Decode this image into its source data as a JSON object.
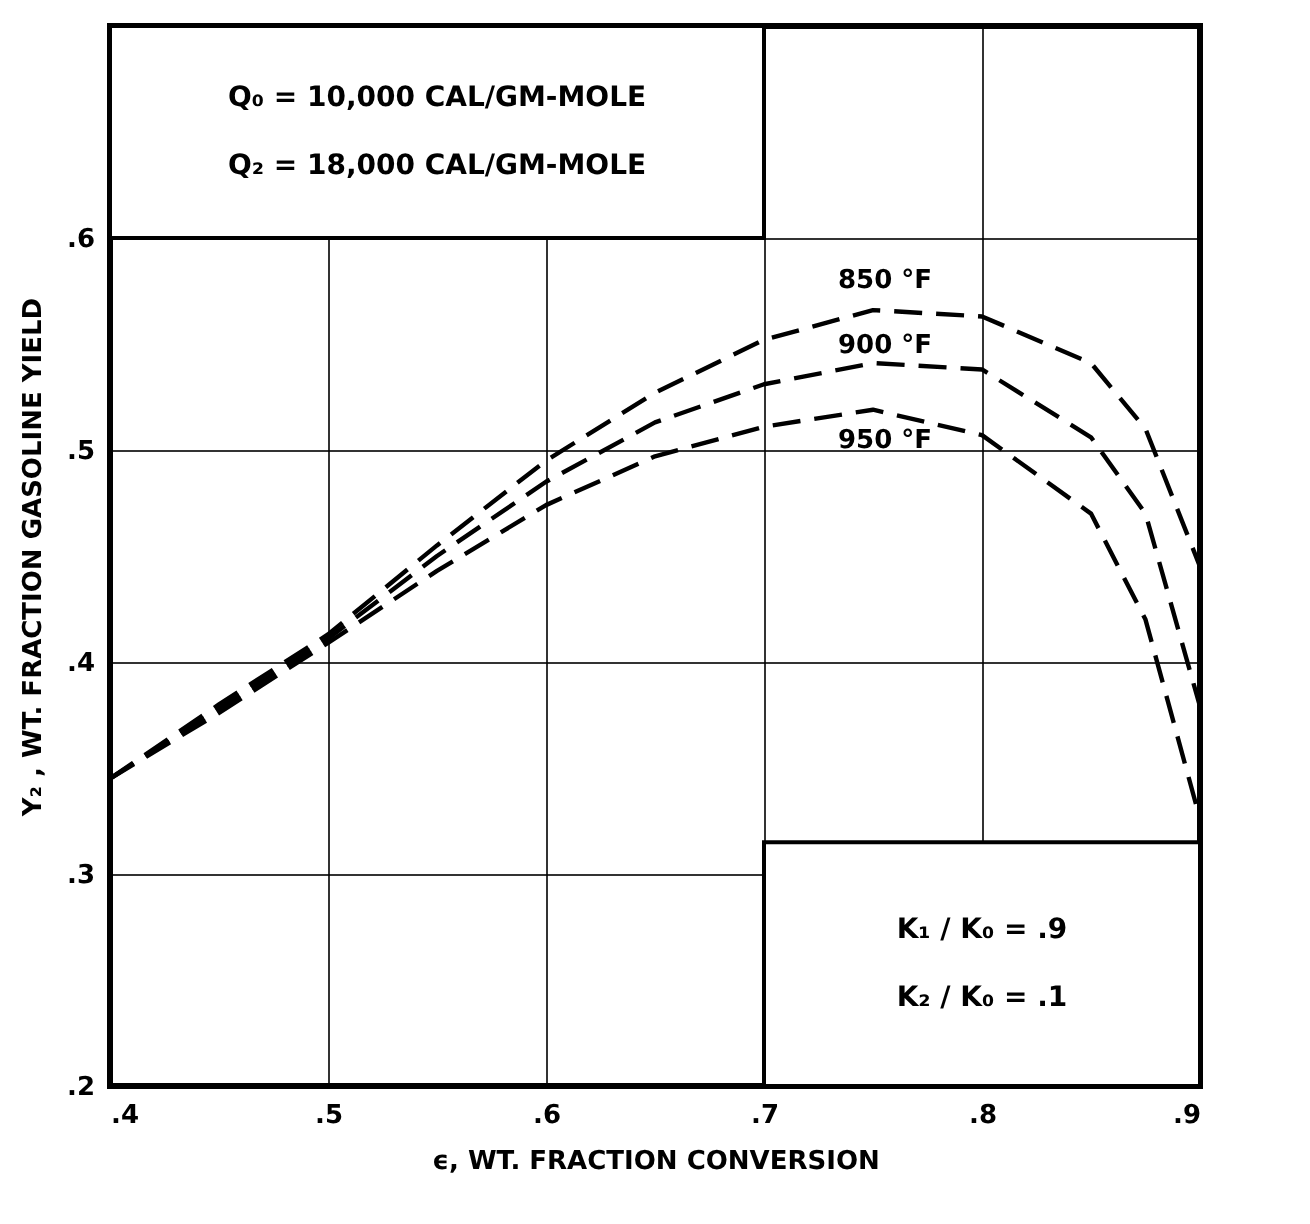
{
  "chart_data": {
    "type": "line",
    "xlabel": "ϵ, WT. FRACTION CONVERSION",
    "ylabel": "Y₂ , WT. FRACTION GASOLINE YIELD",
    "x": [
      0.4,
      0.45,
      0.5,
      0.55,
      0.6,
      0.65,
      0.7,
      0.75,
      0.8,
      0.85,
      0.875,
      0.9
    ],
    "series": [
      {
        "name": "850 °F",
        "color": "#000000",
        "values": [
          0.345,
          0.38,
          0.413,
          0.455,
          0.495,
          0.527,
          0.552,
          0.566,
          0.563,
          0.541,
          0.51,
          0.445
        ]
      },
      {
        "name": "900 °F",
        "color": "#000000",
        "values": [
          0.345,
          0.378,
          0.411,
          0.45,
          0.485,
          0.513,
          0.531,
          0.541,
          0.538,
          0.506,
          0.47,
          0.379
        ]
      },
      {
        "name": "950 °F",
        "color": "#000000",
        "values": [
          0.345,
          0.376,
          0.409,
          0.443,
          0.474,
          0.497,
          0.511,
          0.519,
          0.507,
          0.47,
          0.42,
          0.326
        ]
      }
    ],
    "annotations": [
      "Q₀ = 10,000 CAL/GM-MOLE",
      "Q₂ = 18,000 CAL/GM-MOLE",
      "K₁ / K₀ = .9",
      "K₂ / K₀ = .1"
    ],
    "xlim": [
      0.4,
      0.9
    ],
    "ylim": [
      0.2,
      0.7
    ],
    "xticks": [
      {
        "value": 0.4,
        "label": ".4"
      },
      {
        "value": 0.5,
        "label": ".5"
      },
      {
        "value": 0.6,
        "label": ".6"
      },
      {
        "value": 0.7,
        "label": ".7"
      },
      {
        "value": 0.8,
        "label": ".8"
      },
      {
        "value": 0.9,
        "label": ".9"
      }
    ],
    "yticks": [
      {
        "value": 0.2,
        "label": ".2"
      },
      {
        "value": 0.3,
        "label": ".3"
      },
      {
        "value": 0.4,
        "label": ".4"
      },
      {
        "value": 0.5,
        "label": ".5"
      },
      {
        "value": 0.6,
        "label": ".6"
      }
    ],
    "grid": true,
    "line_style": "dashed",
    "marker": "none",
    "legend": false
  }
}
